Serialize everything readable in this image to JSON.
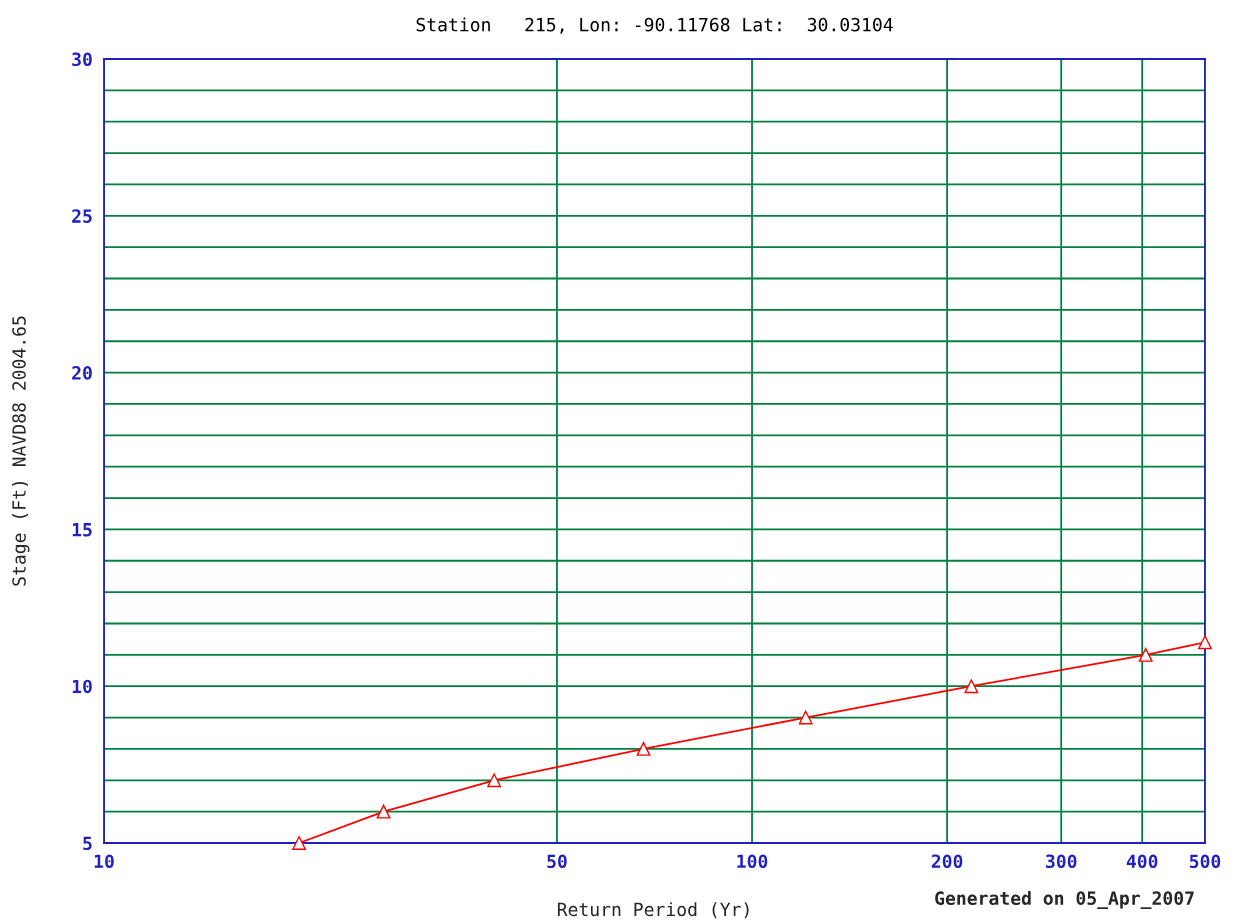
{
  "chart_data": {
    "type": "line",
    "title": "Station   215, Lon: -90.11768 Lat:  30.03104",
    "xlabel": "Return Period (Yr)",
    "ylabel": "Stage (Ft) NAVD88 2004.65",
    "annotations": [
      "Generated on 05_Apr_2007"
    ],
    "x": [
      20,
      27,
      40,
      68,
      121,
      218,
      405,
      500
    ],
    "series": [
      {
        "color": "#ff0000",
        "values": [
          5,
          6,
          7,
          8,
          9,
          10,
          11,
          11.4
        ]
      }
    ],
    "log": "x",
    "xlim": [
      10,
      500
    ],
    "xticks": [
      10,
      50,
      100,
      200,
      300,
      400,
      500
    ],
    "ylim": [
      5,
      30
    ],
    "yticks": [
      5,
      {
        "value": 6,
        "label": null
      },
      {
        "value": 7,
        "label": null
      },
      {
        "value": 8,
        "label": null
      },
      {
        "value": 9,
        "label": null
      },
      10,
      {
        "value": 11,
        "label": null
      },
      {
        "value": 12,
        "label": null
      },
      {
        "value": 13,
        "label": null
      },
      {
        "value": 14,
        "label": null
      },
      15,
      {
        "value": 16,
        "label": null
      },
      {
        "value": 17,
        "label": null
      },
      {
        "value": 18,
        "label": null
      },
      {
        "value": 19,
        "label": null
      },
      20,
      {
        "value": 21,
        "label": null
      },
      {
        "value": 22,
        "label": null
      },
      {
        "value": 23,
        "label": null
      },
      {
        "value": 24,
        "label": null
      },
      25,
      {
        "value": 26,
        "label": null
      },
      {
        "value": 27,
        "label": null
      },
      {
        "value": 28,
        "label": null
      },
      {
        "value": 29,
        "label": null
      },
      30
    ],
    "grid": true,
    "marker": "triangle",
    "line_style": "solid"
  }
}
